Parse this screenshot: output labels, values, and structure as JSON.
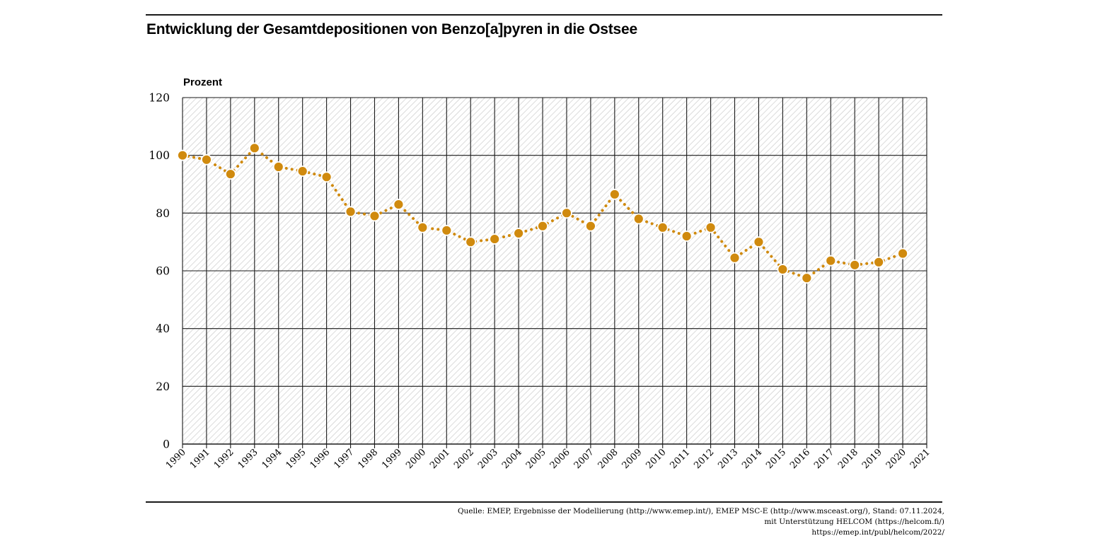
{
  "title": "Entwicklung der Gesamtdepositionen von Benzo[a]pyren in die Ostsee",
  "source": {
    "line1": "Quelle: EMEP, Ergebnisse der Modellierung (http://www.emep.int/), EMEP MSC-E (http://www.msceast.org/), Stand: 07.11.2024,",
    "line2": "mit Unterstützung HELCOM (https://helcom.fi/)",
    "line3": "https://emep.int/publ/helcom/2022/"
  },
  "colors": {
    "series": "#d08a0e",
    "marker_stroke": "#ffffff",
    "grid": "#1a1a1a",
    "hatch": "#c8c8c8"
  },
  "chart_data": {
    "type": "line",
    "title": "Entwicklung der Gesamtdepositionen von Benzo[a]pyren in die Ostsee",
    "ylabel": "Prozent",
    "xlabel": "",
    "ylim": [
      0,
      120
    ],
    "yticks": [
      0,
      20,
      40,
      60,
      80,
      100,
      120
    ],
    "x": [
      "1990",
      "1991",
      "1992",
      "1993",
      "1994",
      "1995",
      "1996",
      "1997",
      "1998",
      "1999",
      "2000",
      "2001",
      "2002",
      "2003",
      "2004",
      "2005",
      "2006",
      "2007",
      "2008",
      "2009",
      "2010",
      "2011",
      "2012",
      "2013",
      "2014",
      "2015",
      "2016",
      "2017",
      "2018",
      "2019",
      "2020",
      "2021"
    ],
    "series": [
      {
        "values": [
          100,
          98.5,
          93.5,
          102.5,
          96,
          94.5,
          92.5,
          80.5,
          79,
          83,
          75,
          74,
          70,
          71,
          73,
          75.5,
          80,
          75.5,
          86.5,
          78,
          75,
          72,
          75,
          64.5,
          70,
          60.5,
          57.5,
          63.5,
          62,
          63,
          66,
          null
        ]
      }
    ],
    "grid": true,
    "line_style": "dotted",
    "marker": "circle"
  }
}
